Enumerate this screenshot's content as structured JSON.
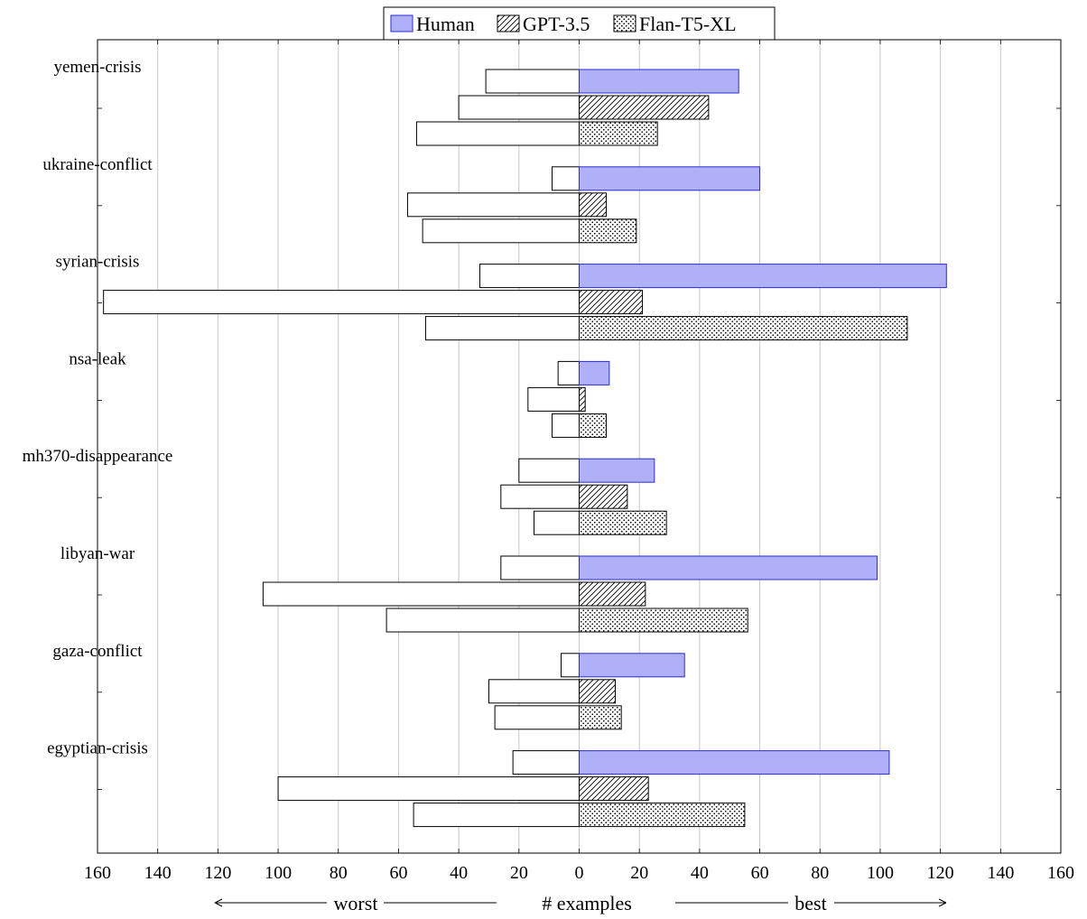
{
  "chart_data": {
    "type": "bar",
    "orientation": "horizontal-diverging",
    "categories": [
      "yemen-crisis",
      "ukraine-conflict",
      "syrian-crisis",
      "nsa-leak",
      "mh370-disappearance",
      "libyan-war",
      "gaza-conflict",
      "egyptian-crisis"
    ],
    "series": [
      {
        "name": "Human",
        "fill": "#b0b0f8",
        "stroke": "#2b2bd6",
        "pattern": "solid",
        "best": [
          53,
          60,
          122,
          10,
          25,
          99,
          35,
          103
        ],
        "worst": [
          31,
          9,
          33,
          7,
          20,
          26,
          6,
          22
        ]
      },
      {
        "name": "GPT-3.5",
        "fill": "#ffffff",
        "stroke": "#000000",
        "pattern": "hatch",
        "best": [
          43,
          9,
          21,
          2,
          16,
          22,
          12,
          23
        ],
        "worst": [
          40,
          57,
          158,
          17,
          26,
          105,
          30,
          100
        ]
      },
      {
        "name": "Flan-T5-XL",
        "fill": "#ffffff",
        "stroke": "#000000",
        "pattern": "dots",
        "best": [
          26,
          19,
          109,
          9,
          29,
          56,
          14,
          55
        ],
        "worst": [
          54,
          52,
          51,
          9,
          15,
          64,
          28,
          55
        ]
      }
    ],
    "xlim": [
      -160,
      160
    ],
    "xticks": [
      -160,
      -140,
      -120,
      -100,
      -80,
      -60,
      -40,
      -20,
      0,
      20,
      40,
      60,
      80,
      100,
      120,
      140,
      160
    ],
    "xtick_labels": [
      "160",
      "140",
      "120",
      "100",
      "80",
      "60",
      "40",
      "20",
      "0",
      "20",
      "40",
      "60",
      "80",
      "100",
      "120",
      "140",
      "160"
    ],
    "xlabel": "# examples",
    "left_direction_label": "worst",
    "right_direction_label": "best",
    "legend_position": "top-center",
    "grid": "vertical"
  }
}
